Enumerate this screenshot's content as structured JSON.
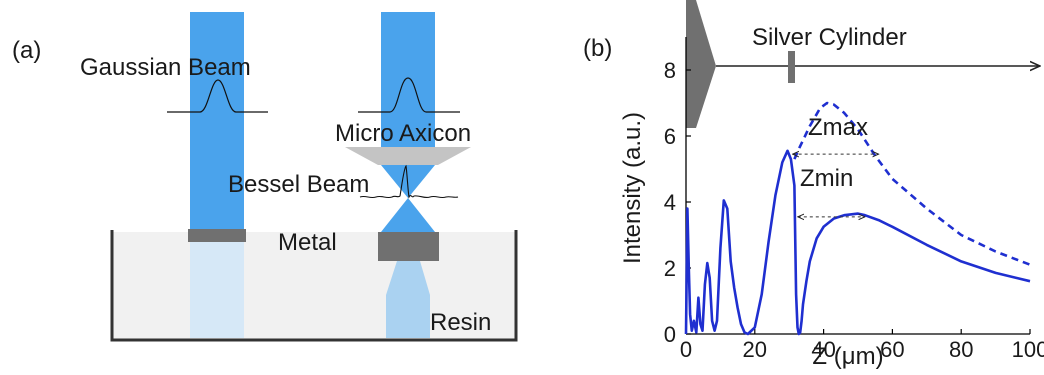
{
  "panel_a": {
    "label": "(a)",
    "gaussian_beam": "Gaussian Beam",
    "micro_axicon": "Micro Axicon",
    "bessel_beam": "Bessel Beam",
    "metal": "Metal",
    "resin": "Resin"
  },
  "panel_b": {
    "label": "(b)",
    "silver_cylinder": "Silver Cylinder",
    "zmax": "Zmax",
    "zmin": "Zmin"
  },
  "colors": {
    "beam": "#4aa3ec",
    "beam_light": "#d6e8f7",
    "metal": "#707070",
    "axicon": "#c4c4c4",
    "resin": "#f1f1f1",
    "curve": "#1f2fd0",
    "axis": "#000000"
  },
  "chart_data": {
    "type": "line",
    "title": "",
    "xlabel": "Z (μm)",
    "ylabel": "Intensity (a.u.)",
    "xlim": [
      0,
      100
    ],
    "ylim": [
      0,
      9
    ],
    "xticks": [
      0,
      20,
      40,
      60,
      80,
      100
    ],
    "yticks": [
      0,
      2,
      4,
      6,
      8
    ],
    "series": [
      {
        "style": "solid",
        "x": [
          0,
          0.4,
          0.8,
          1.2,
          1.7,
          2.3,
          3,
          3.6,
          4.2,
          4.8,
          5.5,
          6.2,
          6.9,
          7.6,
          8.3,
          9,
          10,
          11,
          12,
          13,
          14,
          15,
          16,
          17,
          18,
          20,
          22,
          24,
          26,
          28,
          29.5,
          30.5,
          31.5,
          32,
          32.4,
          32.8,
          33.2,
          33.6,
          34,
          35,
          36,
          38,
          40,
          43,
          46,
          50,
          52,
          56,
          60,
          70,
          80,
          90,
          100
        ],
        "y": [
          0,
          3.8,
          2,
          0.6,
          0.1,
          0.4,
          0.05,
          1.1,
          0.3,
          0.1,
          1.5,
          2.15,
          1.7,
          0.4,
          0.1,
          0.4,
          2.6,
          4.05,
          3.8,
          2.2,
          1.4,
          0.8,
          0.3,
          0.05,
          0,
          0.2,
          1.2,
          2.8,
          4.2,
          5.2,
          5.55,
          5.3,
          4.5,
          1.2,
          0.2,
          0,
          0.05,
          0.4,
          0.9,
          1.6,
          2.2,
          2.9,
          3.25,
          3.5,
          3.6,
          3.65,
          3.6,
          3.45,
          3.25,
          2.7,
          2.2,
          1.85,
          1.6
        ]
      },
      {
        "style": "dashed",
        "x": [
          31.5,
          33,
          36,
          39,
          41,
          43,
          46,
          50,
          55,
          60,
          70,
          80,
          90,
          100
        ],
        "y": [
          5.3,
          5.65,
          6.3,
          6.85,
          7.0,
          6.95,
          6.7,
          6.2,
          5.4,
          4.7,
          3.8,
          3.0,
          2.5,
          2.1
        ]
      }
    ]
  }
}
